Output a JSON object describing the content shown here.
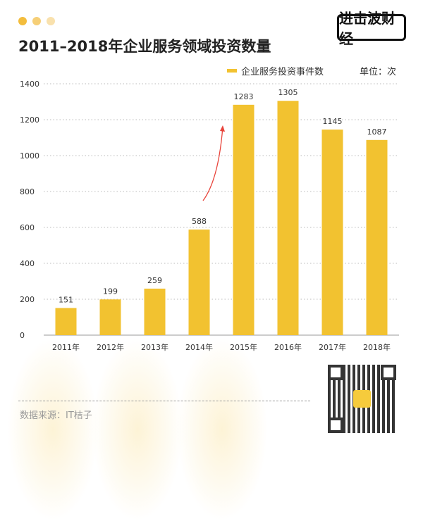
{
  "header": {
    "title": "2011–2018年企业服务领域投资数量",
    "logo_text": "进击波财经",
    "dot_colors": [
      "#f3bd3d",
      "#f6cf77",
      "#f9e1ad"
    ]
  },
  "unit_label": "单位：次",
  "source": "数据来源：IT桔子",
  "chart_data": {
    "type": "bar",
    "title": "2011–2018年企业服务领域投资数量",
    "categories": [
      "2011年",
      "2012年",
      "2013年",
      "2014年",
      "2015年",
      "2016年",
      "2017年",
      "2018年"
    ],
    "series": [
      {
        "name": "企业服务投资事件数",
        "values": [
          151,
          199,
          259,
          588,
          1283,
          1305,
          1145,
          1087
        ],
        "color": "#f2c230"
      }
    ],
    "ylim": [
      0,
      1400
    ],
    "yticks": [
      0,
      200,
      400,
      600,
      800,
      1000,
      1200,
      1400
    ],
    "grid": "horizontal dotted",
    "legend": "top-right",
    "annotation": "red arrow rising from 2014 to 2015"
  }
}
